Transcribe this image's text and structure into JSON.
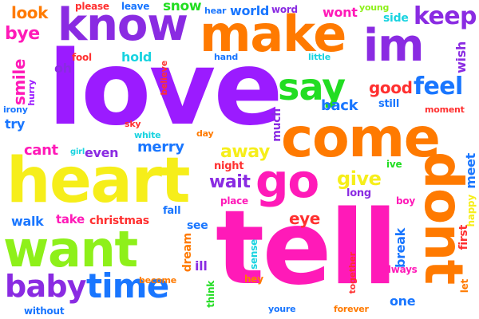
{
  "palette": {
    "purple": "#8a2be2",
    "red": "#ff3030",
    "magenta": "#ff1ab8",
    "orange": "#ff7a00",
    "yellow": "#f6ee1a",
    "lime": "#8ef01a",
    "green": "#22dd22",
    "blue": "#1976ff",
    "cyan": "#19d3e0",
    "violet": "#9b1bff"
  },
  "words": [
    {
      "text": "love",
      "color": "violet"
    },
    {
      "text": "tell",
      "color": "magenta"
    },
    {
      "text": "heart",
      "color": "yellow"
    },
    {
      "text": "come",
      "color": "orange"
    },
    {
      "text": "make",
      "color": "orange"
    },
    {
      "text": "dont",
      "color": "orange"
    },
    {
      "text": "know",
      "color": "purple"
    },
    {
      "text": "im",
      "color": "purple"
    },
    {
      "text": "want",
      "color": "lime"
    },
    {
      "text": "go",
      "color": "magenta"
    },
    {
      "text": "say",
      "color": "green"
    },
    {
      "text": "time",
      "color": "blue"
    },
    {
      "text": "baby",
      "color": "purple"
    },
    {
      "text": "feel",
      "color": "blue"
    },
    {
      "text": "keep",
      "color": "purple"
    },
    {
      "text": "give",
      "color": "yellow"
    },
    {
      "text": "away",
      "color": "yellow"
    },
    {
      "text": "good",
      "color": "red"
    },
    {
      "text": "wait",
      "color": "purple"
    },
    {
      "text": "back",
      "color": "blue"
    },
    {
      "text": "eye",
      "color": "red"
    },
    {
      "text": "merry",
      "color": "blue"
    },
    {
      "text": "cant",
      "color": "magenta"
    },
    {
      "text": "even",
      "color": "purple"
    },
    {
      "text": "bye",
      "color": "magenta"
    },
    {
      "text": "look",
      "color": "orange"
    },
    {
      "text": "smile",
      "color": "magenta"
    },
    {
      "text": "try",
      "color": "blue"
    },
    {
      "text": "walk",
      "color": "blue"
    },
    {
      "text": "take",
      "color": "magenta"
    },
    {
      "text": "christmas",
      "color": "red"
    },
    {
      "text": "world",
      "color": "blue"
    },
    {
      "text": "snow",
      "color": "green"
    },
    {
      "text": "wont",
      "color": "magenta"
    },
    {
      "text": "hold",
      "color": "cyan"
    },
    {
      "text": "please",
      "color": "red"
    },
    {
      "text": "leave",
      "color": "blue"
    },
    {
      "text": "fool",
      "color": "red"
    },
    {
      "text": "oh",
      "color": "purple"
    },
    {
      "text": "hand",
      "color": "blue"
    },
    {
      "text": "little",
      "color": "cyan"
    },
    {
      "text": "hear",
      "color": "blue"
    },
    {
      "text": "word",
      "color": "purple"
    },
    {
      "text": "young",
      "color": "lime"
    },
    {
      "text": "side",
      "color": "cyan"
    },
    {
      "text": "wish",
      "color": "purple"
    },
    {
      "text": "still",
      "color": "blue"
    },
    {
      "text": "moment",
      "color": "red"
    },
    {
      "text": "much",
      "color": "purple"
    },
    {
      "text": "ive",
      "color": "green"
    },
    {
      "text": "meet",
      "color": "blue"
    },
    {
      "text": "happy",
      "color": "yellow"
    },
    {
      "text": "first",
      "color": "red"
    },
    {
      "text": "long",
      "color": "purple"
    },
    {
      "text": "boy",
      "color": "magenta"
    },
    {
      "text": "break",
      "color": "blue"
    },
    {
      "text": "sense",
      "color": "cyan"
    },
    {
      "text": "night",
      "color": "red"
    },
    {
      "text": "place",
      "color": "magenta"
    },
    {
      "text": "fall",
      "color": "blue"
    },
    {
      "text": "see",
      "color": "blue"
    },
    {
      "text": "dream",
      "color": "orange"
    },
    {
      "text": "ill",
      "color": "purple"
    },
    {
      "text": "hey",
      "color": "orange"
    },
    {
      "text": "think",
      "color": "green"
    },
    {
      "text": "become",
      "color": "orange"
    },
    {
      "text": "without",
      "color": "blue"
    },
    {
      "text": "youre",
      "color": "blue"
    },
    {
      "text": "forever",
      "color": "orange"
    },
    {
      "text": "one",
      "color": "blue"
    },
    {
      "text": "together",
      "color": "red"
    },
    {
      "text": "always",
      "color": "magenta"
    },
    {
      "text": "let",
      "color": "orange"
    },
    {
      "text": "irony",
      "color": "blue"
    },
    {
      "text": "hurry",
      "color": "violet"
    },
    {
      "text": "believe",
      "color": "red"
    },
    {
      "text": "sky",
      "color": "red"
    },
    {
      "text": "white",
      "color": "cyan"
    },
    {
      "text": "day",
      "color": "orange"
    },
    {
      "text": "girl",
      "color": "cyan"
    }
  ]
}
